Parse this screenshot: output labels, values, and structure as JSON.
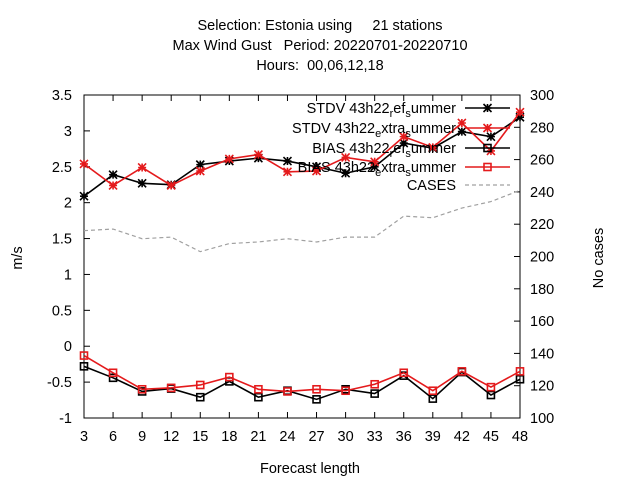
{
  "title_lines": [
    "Selection: Estonia using     21 stations",
    "Max Wind Gust   Period: 20220701-20220710",
    "Hours:  00,06,12,18"
  ],
  "chart_data": {
    "type": "line",
    "title": "Selection: Estonia using 21 stations / Max Wind Gust Period: 20220701-20220710 / Hours: 00,06,12,18",
    "xlabel": "Forecast length",
    "ylabel": "m/s",
    "y2label": "No cases",
    "x": [
      3,
      6,
      9,
      12,
      15,
      18,
      21,
      24,
      27,
      30,
      33,
      36,
      39,
      42,
      45,
      48
    ],
    "xlim": [
      3,
      48
    ],
    "ylim": [
      -1,
      3.5
    ],
    "y2lim": [
      100,
      300
    ],
    "yticks": [
      "3.5",
      "3",
      "2.5",
      "2",
      "1.5",
      "1",
      "0.5",
      "0",
      "-0.5",
      "-1"
    ],
    "y2ticks": [
      "300",
      "280",
      "260",
      "240",
      "220",
      "200",
      "180",
      "160",
      "140",
      "120",
      "100"
    ],
    "legend_position": "top-right",
    "grid": false,
    "series": [
      {
        "name": "STDV 43h22_ref_summer",
        "legend_parts": [
          "STDV 43h22",
          "r",
          "ef",
          "s",
          "ummer"
        ],
        "color": "#000000",
        "marker": "star",
        "axis": "left",
        "values": [
          2.09,
          2.39,
          2.27,
          2.25,
          2.53,
          2.58,
          2.62,
          2.58,
          2.5,
          2.41,
          2.5,
          2.83,
          2.76,
          2.99,
          2.92,
          3.19
        ]
      },
      {
        "name": "STDV 43h22_extra_summer",
        "legend_parts": [
          "STDV 43h22",
          "e",
          "xtra",
          "s",
          "ummer"
        ],
        "color": "#e41a1c",
        "marker": "star",
        "axis": "left",
        "values": [
          2.54,
          2.24,
          2.49,
          2.24,
          2.44,
          2.61,
          2.67,
          2.43,
          2.44,
          2.63,
          2.57,
          2.92,
          2.77,
          3.11,
          2.72,
          3.26
        ]
      },
      {
        "name": "BIAS 43h22_ref_summer",
        "legend_parts": [
          "BIAS 43h22",
          "r",
          "ef",
          "s",
          "ummer"
        ],
        "color": "#000000",
        "marker": "square",
        "axis": "left",
        "values": [
          -0.28,
          -0.44,
          -0.63,
          -0.59,
          -0.71,
          -0.49,
          -0.71,
          -0.62,
          -0.74,
          -0.6,
          -0.66,
          -0.41,
          -0.73,
          -0.36,
          -0.68,
          -0.46
        ]
      },
      {
        "name": "BIAS 43h22_extra_summer",
        "legend_parts": [
          "BIAS 43h22",
          "e",
          "xtra",
          "s",
          "ummer"
        ],
        "color": "#e41a1c",
        "marker": "square",
        "axis": "left",
        "values": [
          -0.13,
          -0.37,
          -0.6,
          -0.58,
          -0.54,
          -0.43,
          -0.6,
          -0.63,
          -0.6,
          -0.62,
          -0.53,
          -0.37,
          -0.62,
          -0.35,
          -0.57,
          -0.35
        ]
      },
      {
        "name": "CASES",
        "legend_parts": [
          "CASES"
        ],
        "color": "#a0a0a0",
        "marker": "none",
        "dashed": true,
        "axis": "right",
        "values": [
          216,
          217,
          211,
          212,
          203,
          208,
          209,
          211,
          209,
          212,
          212,
          225,
          224,
          230,
          234,
          241
        ]
      }
    ]
  }
}
